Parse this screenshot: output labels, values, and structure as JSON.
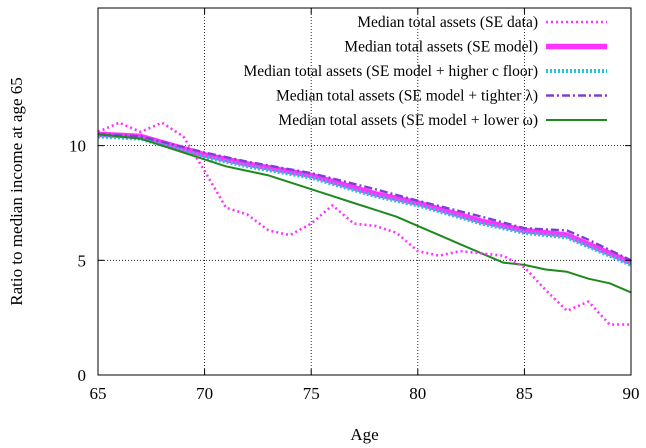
{
  "chart_data": {
    "type": "line",
    "xlabel": "Age",
    "ylabel": "Ratio to median income at age 65",
    "xlim": [
      65,
      90
    ],
    "ylim": [
      0,
      16
    ],
    "xticks": [
      65,
      70,
      75,
      80,
      85,
      90
    ],
    "yticks": [
      0,
      5,
      10
    ],
    "grid": true,
    "legend_position": "top-right",
    "series": [
      {
        "name": "Median total assets (SE data)",
        "color": "#ff33ff",
        "style": "dotted",
        "x": [
          65,
          66,
          67,
          68,
          69,
          70,
          71,
          72,
          73,
          74,
          75,
          76,
          77,
          78,
          79,
          80,
          81,
          82,
          83,
          84,
          85,
          86,
          87,
          88,
          89,
          90
        ],
        "y": [
          10.6,
          11.0,
          10.6,
          11.0,
          10.4,
          8.9,
          7.3,
          7.0,
          6.3,
          6.1,
          6.6,
          7.4,
          6.6,
          6.5,
          6.2,
          5.4,
          5.2,
          5.4,
          5.3,
          5.2,
          4.7,
          3.7,
          2.8,
          3.2,
          2.2,
          2.2
        ]
      },
      {
        "name": "Median total assets (SE model)",
        "color": "#ff33ff",
        "style": "solid-thick",
        "x": [
          65,
          67,
          70,
          72,
          75,
          78,
          80,
          83,
          85,
          87,
          88,
          90
        ],
        "y": [
          10.5,
          10.4,
          9.6,
          9.2,
          8.7,
          7.9,
          7.5,
          6.7,
          6.3,
          6.1,
          5.7,
          4.9
        ]
      },
      {
        "name": "Median total assets (SE model + higher c floor)",
        "color": "#22c3e0",
        "style": "dotted-thick",
        "x": [
          65,
          67,
          70,
          72,
          75,
          78,
          80,
          83,
          85,
          87,
          88,
          90
        ],
        "y": [
          10.4,
          10.3,
          9.5,
          9.1,
          8.6,
          7.8,
          7.4,
          6.6,
          6.2,
          6.0,
          5.6,
          4.8
        ]
      },
      {
        "name": "Median total assets (SE model + tighter λ)",
        "color": "#7d3fd6",
        "style": "dashdot",
        "x": [
          65,
          67,
          70,
          72,
          75,
          78,
          80,
          83,
          85,
          87,
          88,
          90
        ],
        "y": [
          10.5,
          10.4,
          9.7,
          9.3,
          8.8,
          8.1,
          7.6,
          6.9,
          6.4,
          6.3,
          5.9,
          5.0
        ]
      },
      {
        "name": "Median total assets (SE model + lower ω)",
        "color": "#1e8a1e",
        "style": "solid",
        "x": [
          65,
          66,
          67,
          68,
          69,
          70,
          71,
          72,
          73,
          74,
          75,
          76,
          77,
          78,
          79,
          80,
          81,
          82,
          83,
          84,
          85,
          86,
          87,
          88,
          89,
          90
        ],
        "y": [
          10.5,
          10.4,
          10.3,
          10.0,
          9.7,
          9.4,
          9.1,
          8.9,
          8.7,
          8.4,
          8.1,
          7.8,
          7.5,
          7.2,
          6.9,
          6.5,
          6.1,
          5.7,
          5.3,
          4.9,
          4.8,
          4.6,
          4.5,
          4.2,
          4.0,
          3.6
        ]
      }
    ]
  }
}
